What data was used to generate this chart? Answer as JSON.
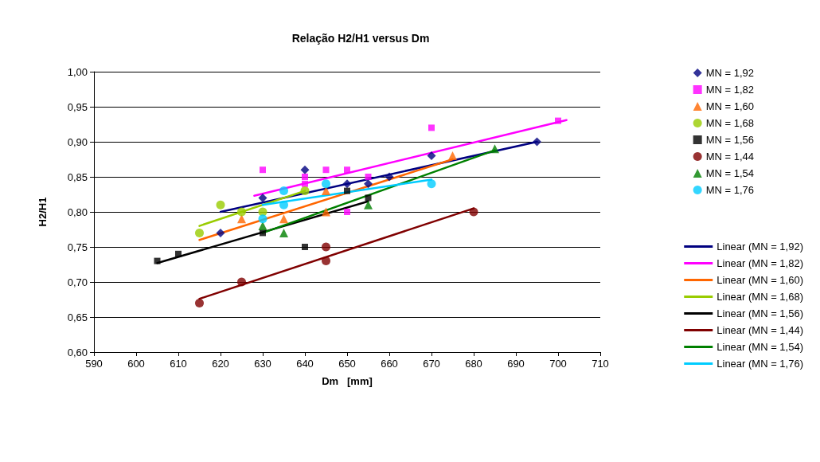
{
  "chart_data": {
    "type": "scatter",
    "title": "Relação H2/H1 versus Dm",
    "xlabel": "Dm   [mm]",
    "ylabel": "H2/H1",
    "xlim": [
      590,
      710
    ],
    "xticks": [
      590,
      600,
      610,
      620,
      630,
      640,
      650,
      660,
      670,
      680,
      690,
      700,
      710
    ],
    "ylim": [
      0.6,
      1.0
    ],
    "yticks": [
      {
        "value": 0.6,
        "label": "0,60"
      },
      {
        "value": 0.65,
        "label": "0,65"
      },
      {
        "value": 0.7,
        "label": "0,70"
      },
      {
        "value": 0.75,
        "label": "0,75"
      },
      {
        "value": 0.8,
        "label": "0,80"
      },
      {
        "value": 0.85,
        "label": "0,85"
      },
      {
        "value": 0.9,
        "label": "0,90"
      },
      {
        "value": 0.95,
        "label": "0,95"
      },
      {
        "value": 1.0,
        "label": "1,00"
      }
    ],
    "grid": "y",
    "legend": "right",
    "series": [
      {
        "name": "MN = 1,92",
        "marker": "diamond",
        "color": "#000080",
        "x": [
          620,
          630,
          640,
          650,
          655,
          660,
          670,
          695
        ],
        "values": [
          0.77,
          0.82,
          0.86,
          0.84,
          0.84,
          0.85,
          0.88,
          0.9
        ]
      },
      {
        "name": "MN = 1,82",
        "marker": "square",
        "color": "#ff00ff",
        "x": [
          630,
          640,
          640,
          645,
          650,
          650,
          655,
          670,
          700
        ],
        "values": [
          0.86,
          0.85,
          0.84,
          0.86,
          0.86,
          0.8,
          0.85,
          0.92,
          0.93
        ]
      },
      {
        "name": "MN = 1,60",
        "marker": "triangle",
        "color": "#ff6600",
        "x": [
          625,
          635,
          645,
          645,
          675
        ],
        "values": [
          0.79,
          0.79,
          0.83,
          0.8,
          0.88
        ]
      },
      {
        "name": "MN = 1,68",
        "marker": "circle",
        "color": "#99cc00",
        "x": [
          615,
          620,
          625,
          630,
          640
        ],
        "values": [
          0.77,
          0.81,
          0.8,
          0.8,
          0.83
        ]
      },
      {
        "name": "MN = 1,56",
        "marker": "square",
        "color": "#000000",
        "x": [
          605,
          610,
          630,
          640,
          650,
          655
        ],
        "values": [
          0.73,
          0.74,
          0.77,
          0.75,
          0.83,
          0.82
        ]
      },
      {
        "name": "MN = 1,44",
        "marker": "circle",
        "color": "#800000",
        "x": [
          615,
          625,
          645,
          645,
          680
        ],
        "values": [
          0.67,
          0.7,
          0.75,
          0.73,
          0.8
        ]
      },
      {
        "name": "MN = 1,54",
        "marker": "triangle",
        "color": "#008000",
        "x": [
          630,
          635,
          655,
          685
        ],
        "values": [
          0.78,
          0.77,
          0.81,
          0.89
        ]
      },
      {
        "name": "MN = 1,76",
        "marker": "circle",
        "color": "#00ccff",
        "x": [
          630,
          635,
          635,
          645,
          670
        ],
        "values": [
          0.79,
          0.83,
          0.81,
          0.84,
          0.84
        ]
      },
      {
        "name": "Linear (MN = 1,92)",
        "type": "line",
        "marker": "none",
        "color": "#000080",
        "x": [
          620,
          695
        ],
        "values": [
          0.8,
          0.9
        ]
      },
      {
        "name": "Linear (MN = 1,82)",
        "type": "line",
        "marker": "none",
        "color": "#ff00ff",
        "x": [
          628,
          702
        ],
        "values": [
          0.823,
          0.931
        ]
      },
      {
        "name": "Linear (MN = 1,60)",
        "type": "line",
        "marker": "none",
        "color": "#ff6600",
        "x": [
          615,
          675
        ],
        "values": [
          0.76,
          0.875
        ]
      },
      {
        "name": "Linear (MN = 1,68)",
        "type": "line",
        "marker": "none",
        "color": "#99cc00",
        "x": [
          615,
          640
        ],
        "values": [
          0.78,
          0.83
        ]
      },
      {
        "name": "Linear (MN = 1,56)",
        "type": "line",
        "marker": "none",
        "color": "#000000",
        "x": [
          605,
          655
        ],
        "values": [
          0.727,
          0.815
        ]
      },
      {
        "name": "Linear (MN = 1,44)",
        "type": "line",
        "marker": "none",
        "color": "#800000",
        "x": [
          615,
          680
        ],
        "values": [
          0.676,
          0.805
        ]
      },
      {
        "name": "Linear (MN = 1,54)",
        "type": "line",
        "marker": "none",
        "color": "#008000",
        "x": [
          630,
          685
        ],
        "values": [
          0.77,
          0.888
        ]
      },
      {
        "name": "Linear (MN = 1,76)",
        "type": "line",
        "marker": "none",
        "color": "#00ccff",
        "x": [
          630,
          670
        ],
        "values": [
          0.81,
          0.846
        ]
      }
    ]
  }
}
